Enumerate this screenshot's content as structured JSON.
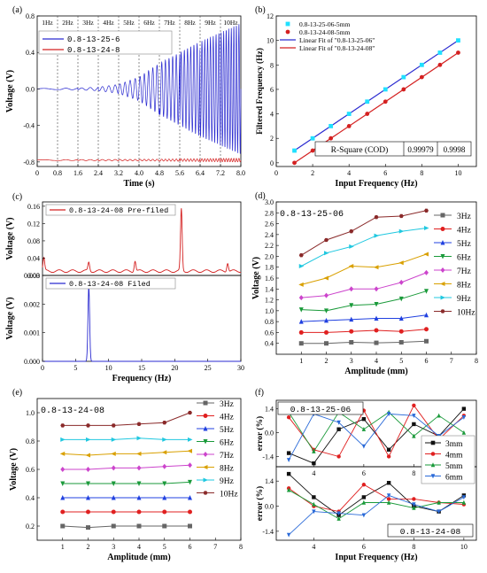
{
  "chart_data": [
    {
      "panel": "(a)",
      "type": "line",
      "xlabel": "Time (s)",
      "ylabel": "Voltage (V)",
      "xlim": [
        0,
        8
      ],
      "ylim": [
        -0.85,
        0.8
      ],
      "xticks": [
        "0",
        "0.8",
        "1.6",
        "2.4",
        "3.2",
        "4.0",
        "4.8",
        "5.6",
        "6.4",
        "7.2",
        "8.0"
      ],
      "yticks": [
        "-0.8",
        "-0.4",
        "0.0",
        "0.4",
        "0.8"
      ],
      "segment_labels": [
        "1Hz",
        "2Hz",
        "3Hz",
        "4Hz",
        "5Hz",
        "6Hz",
        "7Hz",
        "8Hz",
        "9Hz",
        "10Hz"
      ],
      "series": [
        {
          "name": "0.8-13-25-6",
          "color": "#2a2ad0",
          "offset": 0.0,
          "amplitude_envelope": [
            [
              0,
              0.005
            ],
            [
              1.6,
              0.01
            ],
            [
              2.4,
              0.02
            ],
            [
              3.2,
              0.05
            ],
            [
              4.0,
              0.13
            ],
            [
              4.8,
              0.28
            ],
            [
              5.6,
              0.4
            ],
            [
              6.4,
              0.52
            ],
            [
              7.2,
              0.62
            ],
            [
              8.0,
              0.72
            ]
          ]
        },
        {
          "name": "0.8-13-24-8",
          "color": "#d42020",
          "offset": -0.78,
          "amplitude_envelope": [
            [
              0,
              0.004
            ],
            [
              4.0,
              0.008
            ],
            [
              6.4,
              0.015
            ],
            [
              8.0,
              0.02
            ]
          ]
        }
      ]
    },
    {
      "panel": "(b)",
      "type": "scatter",
      "xlabel": "Input Frequency (Hz)",
      "ylabel": "Filtered Frequency (Hz)",
      "xlim": [
        0,
        11
      ],
      "ylim": [
        -0.3,
        12
      ],
      "xticks": [
        "0",
        "2",
        "4",
        "6",
        "8",
        "10"
      ],
      "yticks": [
        "0",
        "2",
        "4",
        "6",
        "8",
        "10",
        "12"
      ],
      "series": [
        {
          "name": "0.8-13-25-06-5mm",
          "color": "#20e0ff",
          "marker": "square",
          "x": [
            1,
            2,
            3,
            4,
            5,
            6,
            7,
            8,
            9,
            10
          ],
          "y": [
            1,
            2,
            3,
            4,
            5,
            6,
            7,
            8,
            9,
            10
          ]
        },
        {
          "name": "0.8-13-24-08-5mm",
          "color": "#d42020",
          "marker": "circle",
          "x": [
            1,
            2,
            3,
            4,
            5,
            6,
            7,
            8,
            9,
            10
          ],
          "y": [
            0,
            1,
            2,
            3,
            4,
            5,
            6,
            7,
            8,
            9
          ]
        }
      ],
      "fits": [
        {
          "name": "Linear Fit of \"0.8-13-25-06\"",
          "color": "#2a2ad0",
          "x": [
            1,
            10
          ],
          "y": [
            1,
            10
          ]
        },
        {
          "name": "Linear Fit of \"0.8-13-24-08\"",
          "color": "#d42020",
          "x": [
            1,
            10
          ],
          "y": [
            0,
            9
          ]
        }
      ],
      "table": {
        "label": "R-Square (COD)",
        "values": [
          "0.99979",
          "0.9998"
        ]
      }
    },
    {
      "panel": "(c)",
      "type": "line",
      "xlabel": "Frequency (Hz)",
      "ylabel": "Voltage (V)",
      "xlim": [
        0,
        30
      ],
      "xticks": [
        "0",
        "5",
        "10",
        "15",
        "20",
        "25",
        "30"
      ],
      "subplots": [
        {
          "name": "0.8-13-24-08 Pre-filed",
          "color": "#d42020",
          "ylim": [
            0,
            0.17
          ],
          "yticks": [
            "0.00",
            "0.04",
            "0.08",
            "0.12",
            "0.16"
          ],
          "baseline": 0.01,
          "peaks": [
            [
              0.2,
              0.04
            ],
            [
              7,
              0.03
            ],
            [
              14,
              0.034
            ],
            [
              21,
              0.153
            ],
            [
              28,
              0.03
            ]
          ]
        },
        {
          "name": "0.8-13-24-08 Filed",
          "color": "#2a2ad0",
          "ylim": [
            0,
            0.003
          ],
          "yticks": [
            "0.000",
            "0.001",
            "0.002",
            "0.003"
          ],
          "baseline": 0.0,
          "peaks": [
            [
              7,
              0.0026
            ]
          ]
        }
      ]
    },
    {
      "panel": "(d)",
      "type": "line",
      "title_box": "0.8-13-25-06",
      "xlabel": "Amplitude (mm)",
      "ylabel": "Voltage (V)",
      "xlim": [
        0,
        8
      ],
      "ylim": [
        0.2,
        3.0
      ],
      "xticks": [
        "1",
        "2",
        "3",
        "4",
        "5",
        "6",
        "7",
        "8"
      ],
      "yticks": [
        "0.4",
        "0.6",
        "0.8",
        "1.0",
        "1.2",
        "1.4",
        "1.6",
        "1.8",
        "2.0",
        "2.2",
        "2.4",
        "2.6",
        "2.8",
        "3.0"
      ],
      "x": [
        1,
        2,
        3,
        4,
        5,
        6
      ],
      "series": [
        {
          "name": "3Hz",
          "color": "#666666",
          "marker": "square",
          "values": [
            0.4,
            0.4,
            0.42,
            0.41,
            0.42,
            0.44
          ]
        },
        {
          "name": "4Hz",
          "color": "#e02020",
          "marker": "circle",
          "values": [
            0.6,
            0.6,
            0.62,
            0.64,
            0.62,
            0.66
          ]
        },
        {
          "name": "5Hz",
          "color": "#2040e0",
          "marker": "triangle-up",
          "values": [
            0.8,
            0.82,
            0.84,
            0.86,
            0.86,
            0.92
          ]
        },
        {
          "name": "6Hz",
          "color": "#1a9a3a",
          "marker": "triangle-down",
          "values": [
            1.02,
            1.0,
            1.1,
            1.12,
            1.22,
            1.36
          ]
        },
        {
          "name": "7Hz",
          "color": "#cc44cc",
          "marker": "diamond",
          "values": [
            1.24,
            1.28,
            1.4,
            1.4,
            1.52,
            1.7
          ]
        },
        {
          "name": "8Hz",
          "color": "#d9a000",
          "marker": "triangle-left",
          "values": [
            1.48,
            1.6,
            1.82,
            1.8,
            1.88,
            2.04
          ]
        },
        {
          "name": "9Hz",
          "color": "#20c8e0",
          "marker": "triangle-right",
          "values": [
            1.82,
            2.06,
            2.18,
            2.38,
            2.46,
            2.52
          ]
        },
        {
          "name": "10Hz",
          "color": "#8a2a2a",
          "marker": "hexagon",
          "values": [
            2.02,
            2.3,
            2.46,
            2.72,
            2.74,
            2.84
          ]
        }
      ]
    },
    {
      "panel": "(e)",
      "type": "line",
      "title_box": "0.8-13-24-08",
      "xlabel": "Amplitude (mm)",
      "ylabel": "Voltage (V)",
      "xlim": [
        0,
        8
      ],
      "ylim": [
        0.1,
        1.1
      ],
      "xticks": [
        "1",
        "2",
        "3",
        "4",
        "5",
        "6",
        "7",
        "8"
      ],
      "yticks": [
        "0.2",
        "0.4",
        "0.6",
        "0.8",
        "1.0"
      ],
      "x": [
        1,
        2,
        3,
        4,
        5,
        6
      ],
      "series": [
        {
          "name": "3Hz",
          "color": "#666666",
          "marker": "square",
          "values": [
            0.2,
            0.19,
            0.2,
            0.2,
            0.2,
            0.2
          ]
        },
        {
          "name": "4Hz",
          "color": "#e02020",
          "marker": "circle",
          "values": [
            0.3,
            0.3,
            0.3,
            0.3,
            0.3,
            0.3
          ]
        },
        {
          "name": "5Hz",
          "color": "#2040e0",
          "marker": "triangle-up",
          "values": [
            0.4,
            0.4,
            0.4,
            0.4,
            0.4,
            0.4
          ]
        },
        {
          "name": "6Hz",
          "color": "#1a9a3a",
          "marker": "triangle-down",
          "values": [
            0.5,
            0.5,
            0.5,
            0.5,
            0.5,
            0.51
          ]
        },
        {
          "name": "7Hz",
          "color": "#cc44cc",
          "marker": "diamond",
          "values": [
            0.6,
            0.6,
            0.61,
            0.61,
            0.62,
            0.63
          ]
        },
        {
          "name": "8Hz",
          "color": "#d9a000",
          "marker": "triangle-left",
          "values": [
            0.71,
            0.7,
            0.71,
            0.71,
            0.72,
            0.73
          ]
        },
        {
          "name": "9Hz",
          "color": "#20c8e0",
          "marker": "triangle-right",
          "values": [
            0.81,
            0.81,
            0.81,
            0.82,
            0.81,
            0.81
          ]
        },
        {
          "name": "10Hz",
          "color": "#8a2a2a",
          "marker": "hexagon",
          "values": [
            0.91,
            0.91,
            0.91,
            0.92,
            0.93,
            1.0
          ]
        }
      ]
    },
    {
      "panel": "(f)",
      "type": "line",
      "xlabel": "Input Frequency (Hz)",
      "ylabel": "error (%)",
      "xlim": [
        2.5,
        10.5
      ],
      "xticks": [
        "4",
        "6",
        "8",
        "10"
      ],
      "x": [
        3,
        4,
        5,
        6,
        7,
        8,
        9,
        10
      ],
      "legend": [
        {
          "name": "3mm",
          "color": "#111111",
          "marker": "square"
        },
        {
          "name": "4mm",
          "color": "#e02020",
          "marker": "circle"
        },
        {
          "name": "5mm",
          "color": "#1a9a3a",
          "marker": "triangle-up"
        },
        {
          "name": "6mm",
          "color": "#2a6ad8",
          "marker": "triangle-down"
        }
      ],
      "subplots": [
        {
          "title_box": "0.8-13-25-06",
          "ylim": [
            -2.0,
            1.9
          ],
          "yticks": [
            "1.4",
            "0.0",
            "-1.4"
          ],
          "series": [
            {
              "name": "3mm",
              "values": [
                -1.2,
                -1.8,
                0.2,
                0.8,
                -1.0,
                0.5,
                -0.2,
                1.4
              ]
            },
            {
              "name": "4mm",
              "values": [
                0.9,
                -1.0,
                -1.4,
                1.3,
                -1.4,
                1.6,
                -0.4,
                1.0
              ]
            },
            {
              "name": "5mm",
              "values": [
                1.2,
                -1.1,
                1.2,
                0.2,
                1.2,
                -0.2,
                1.0,
                0.0
              ]
            },
            {
              "name": "6mm",
              "values": [
                -1.6,
                1.1,
                0.6,
                -0.8,
                1.1,
                1.0,
                -0.2,
                0.9
              ]
            }
          ]
        },
        {
          "title_box": "0.8-13-24-08",
          "ylim": [
            -1.9,
            2.2
          ],
          "yticks": [
            "1.4",
            "0.0",
            "-1.4"
          ],
          "series": [
            {
              "name": "3mm",
              "values": [
                1.8,
                0.5,
                -0.5,
                0.5,
                1.3,
                0.0,
                -0.3,
                0.6
              ]
            },
            {
              "name": "4mm",
              "values": [
                1.0,
                0.0,
                -0.3,
                1.2,
                0.4,
                0.4,
                0.2,
                0.1
              ]
            },
            {
              "name": "5mm",
              "values": [
                0.9,
                0.1,
                -0.7,
                0.2,
                0.2,
                -0.1,
                0.2,
                0.2
              ]
            },
            {
              "name": "6mm",
              "values": [
                -1.6,
                -0.3,
                -0.4,
                -0.5,
                0.6,
                0.1,
                -0.3,
                0.5
              ]
            }
          ]
        }
      ]
    }
  ]
}
